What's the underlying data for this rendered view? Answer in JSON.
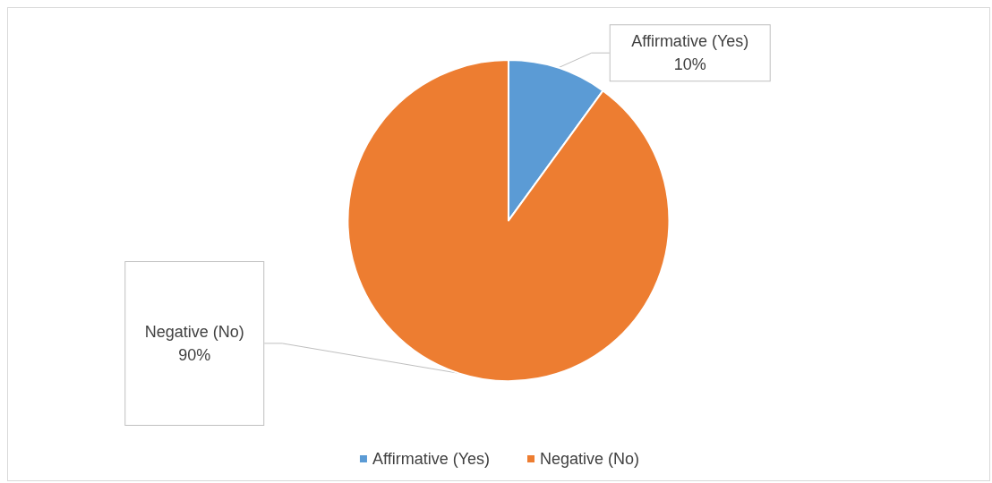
{
  "chart_data": {
    "type": "pie",
    "categories": [
      "Affirmative (Yes)",
      "Negative (No)"
    ],
    "values": [
      10,
      90
    ],
    "colors": [
      "#5b9bd5",
      "#ed7d31"
    ],
    "value_labels": [
      "10%",
      "90%"
    ],
    "legend": "bottom"
  }
}
